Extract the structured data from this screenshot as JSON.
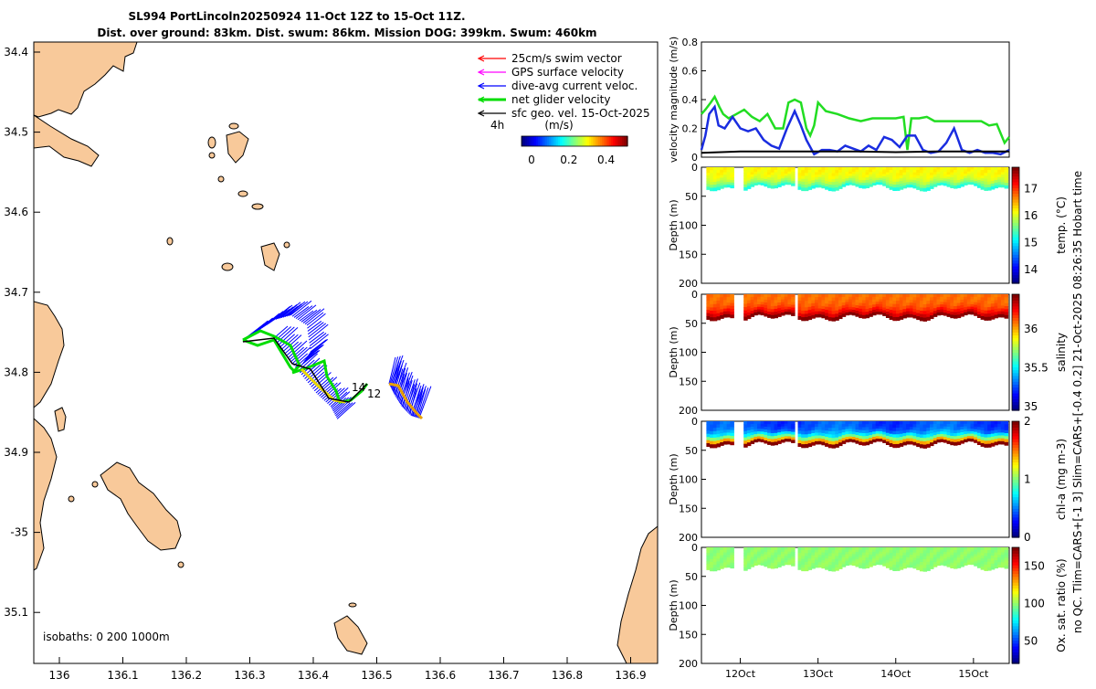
{
  "title_line1": "SL994 PortLincoln20250924 11-Oct 12Z to 15-Oct 11Z.",
  "title_line2": "Dist. over ground: 83km. Dist. swum: 86km. Mission DOG: 399km. Swum: 460km",
  "side_note": "no QC. Tlim=CARS+[-1 3] Slim=CARS+[-0.4 0.2] 21-Oct-2025 08:26:35 Hobart time",
  "map": {
    "lon_ticks": [
      "136",
      "136.1",
      "136.2",
      "136.3",
      "136.4",
      "136.5",
      "136.6",
      "136.7",
      "136.8",
      "136.9"
    ],
    "lat_ticks": [
      "34.4",
      "34.5",
      "34.6",
      "34.7",
      "34.8",
      "34.9",
      "-35",
      "35.1"
    ],
    "isobaths_label": "isobaths: 0   200  1000m",
    "legend": [
      {
        "label": "25cm/s swim vector",
        "color": "#ff0000"
      },
      {
        "label": "GPS surface velocity",
        "color": "#ff00ff"
      },
      {
        "label": "dive-avg current veloc.",
        "color": "#0000ff"
      },
      {
        "label": "net glider velocity",
        "color": "#00dd00"
      },
      {
        "label": "sfc geo. vel. 15-Oct-2025",
        "color": "#000000"
      }
    ],
    "time_marker": "4h",
    "colorbar_title": "(m/s)",
    "colorbar_ticks": [
      "0",
      "0.2",
      "0.4"
    ],
    "track_labels": [
      "14",
      "12"
    ],
    "land_color": "#f8c99a"
  },
  "chart_data": [
    {
      "type": "line",
      "title": "",
      "ylabel": "velocity magnitude (m/s)",
      "ylim": [
        0,
        0.8
      ],
      "y_ticks": [
        "0",
        "0.2",
        "0.4",
        "0.6",
        "0.8"
      ],
      "x_range_days": [
        11.5,
        15.46
      ],
      "series": [
        {
          "name": "net glider velocity",
          "color": "#22dd22",
          "x": [
            11.5,
            11.55,
            11.62,
            11.67,
            11.73,
            11.78,
            11.85,
            11.95,
            12.05,
            12.15,
            12.25,
            12.35,
            12.45,
            12.55,
            12.62,
            12.7,
            12.78,
            12.85,
            12.9,
            12.95,
            13.0,
            13.1,
            13.25,
            13.4,
            13.55,
            13.7,
            13.85,
            14.0,
            14.1,
            14.15,
            14.2,
            14.25,
            14.3,
            14.4,
            14.5,
            14.6,
            14.7,
            14.8,
            14.9,
            15.0,
            15.1,
            15.2,
            15.3,
            15.4,
            15.46
          ],
          "y": [
            0.3,
            0.33,
            0.38,
            0.42,
            0.35,
            0.3,
            0.27,
            0.3,
            0.33,
            0.28,
            0.25,
            0.3,
            0.2,
            0.2,
            0.38,
            0.4,
            0.38,
            0.2,
            0.15,
            0.22,
            0.38,
            0.32,
            0.3,
            0.27,
            0.25,
            0.27,
            0.27,
            0.27,
            0.28,
            0.05,
            0.27,
            0.27,
            0.27,
            0.28,
            0.25,
            0.25,
            0.25,
            0.25,
            0.25,
            0.25,
            0.25,
            0.22,
            0.23,
            0.1,
            0.14
          ]
        },
        {
          "name": "dive-avg current veloc.",
          "color": "#1a2de0",
          "x": [
            11.5,
            11.55,
            11.6,
            11.67,
            11.72,
            11.8,
            11.9,
            12.0,
            12.1,
            12.2,
            12.3,
            12.4,
            12.5,
            12.6,
            12.7,
            12.78,
            12.85,
            12.95,
            13.05,
            13.15,
            13.25,
            13.35,
            13.45,
            13.55,
            13.65,
            13.75,
            13.85,
            13.95,
            14.05,
            14.15,
            14.25,
            14.35,
            14.45,
            14.55,
            14.65,
            14.75,
            14.85,
            14.95,
            15.05,
            15.15,
            15.25,
            15.35,
            15.46
          ],
          "y": [
            0.05,
            0.15,
            0.3,
            0.35,
            0.22,
            0.2,
            0.28,
            0.2,
            0.18,
            0.2,
            0.12,
            0.08,
            0.06,
            0.2,
            0.32,
            0.22,
            0.12,
            0.02,
            0.05,
            0.05,
            0.04,
            0.08,
            0.06,
            0.04,
            0.08,
            0.05,
            0.14,
            0.12,
            0.07,
            0.15,
            0.15,
            0.05,
            0.03,
            0.04,
            0.1,
            0.2,
            0.05,
            0.03,
            0.05,
            0.03,
            0.03,
            0.02,
            0.05
          ]
        },
        {
          "name": "sfc geo. vel.",
          "color": "#000000",
          "x": [
            11.5,
            12.0,
            12.5,
            13.0,
            13.5,
            14.0,
            14.5,
            15.0,
            15.46
          ],
          "y": [
            0.03,
            0.04,
            0.04,
            0.04,
            0.04,
            0.035,
            0.04,
            0.04,
            0.04
          ]
        }
      ]
    },
    {
      "type": "heatmap",
      "ylabel": "Depth (m)",
      "ylim": [
        200,
        0
      ],
      "y_ticks": [
        "0",
        "50",
        "100",
        "150",
        "200"
      ],
      "colorbar_label": "temp. (°C)",
      "colorbar_ticks": [
        "14",
        "15",
        "16",
        "17"
      ],
      "colorbar_range": [
        13.5,
        17.8
      ],
      "surface_value": 16.2,
      "deep_value": 15.3,
      "max_depth_m": 35
    },
    {
      "type": "heatmap",
      "ylabel": "Depth (m)",
      "ylim": [
        200,
        0
      ],
      "y_ticks": [
        "0",
        "50",
        "100",
        "150",
        "200"
      ],
      "colorbar_label": "salinity",
      "colorbar_ticks": [
        "35",
        "35.5",
        "36"
      ],
      "colorbar_range": [
        34.95,
        36.45
      ],
      "surface_value": 36.1,
      "deep_value": 36.45,
      "max_depth_m": 40
    },
    {
      "type": "heatmap",
      "ylabel": "Depth (m)",
      "ylim": [
        200,
        0
      ],
      "y_ticks": [
        "0",
        "50",
        "100",
        "150",
        "200"
      ],
      "colorbar_label": "chl-a (mg m-3)",
      "colorbar_ticks": [
        "0",
        "1",
        "2"
      ],
      "colorbar_range": [
        0,
        2
      ],
      "surface_value": 0.4,
      "deep_value": 2.0,
      "max_depth_m": 40
    },
    {
      "type": "heatmap",
      "ylabel": "Depth (m)",
      "ylim": [
        200,
        0
      ],
      "y_ticks": [
        "0",
        "50",
        "100",
        "150",
        "200"
      ],
      "colorbar_label": "Ox. sat. ratio (%)",
      "colorbar_ticks": [
        "50",
        "100",
        "150"
      ],
      "colorbar_range": [
        20,
        175
      ],
      "surface_value": 100,
      "deep_value": 100,
      "max_depth_m": 35
    }
  ],
  "time_axis": {
    "ticks": [
      "12Oct",
      "13Oct",
      "14Oct",
      "15Oct"
    ],
    "tick_days": [
      12,
      13,
      14,
      15
    ]
  }
}
